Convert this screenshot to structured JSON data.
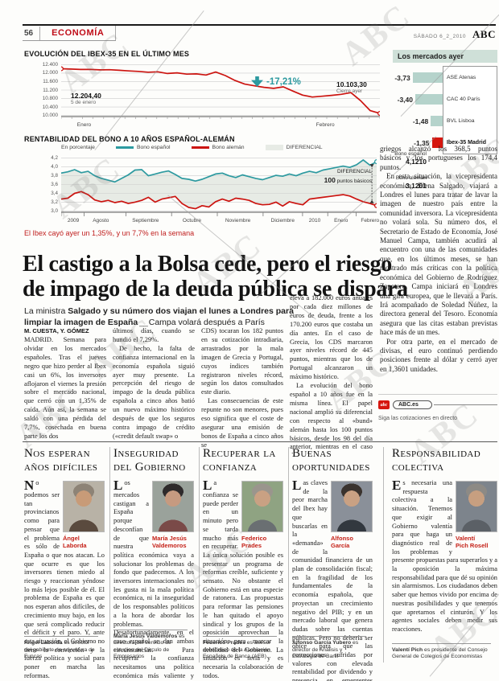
{
  "page_header": {
    "page_number": "56",
    "section": "ECONOMÍA",
    "date": "SÁBADO 6_2_2010",
    "brand": "ABC"
  },
  "watermark_text": "ABC",
  "chart_data": [
    {
      "type": "line",
      "title": "EVOLUCIÓN DEL IBEX-35 EN EL ÚLTIMO MES",
      "ylim": [
        9950,
        12450
      ],
      "yticks": [
        {
          "v": 12400,
          "label": "12.400"
        },
        {
          "v": 12000,
          "label": "12.000"
        },
        {
          "v": 11600,
          "label": "11.600"
        },
        {
          "v": 11200,
          "label": "11.200"
        },
        {
          "v": 10800,
          "label": "10.800"
        },
        {
          "v": 10400,
          "label": "10.400"
        },
        {
          "v": 10000,
          "label": "10.000"
        }
      ],
      "xticks": [
        {
          "pos": 0.05,
          "label": "Enero"
        },
        {
          "pos": 0.8,
          "label": "Febrero"
        }
      ],
      "minor_xticks": 30,
      "series": [
        {
          "name": "Ibex-35",
          "color": "#cc1410",
          "start_marker": true,
          "values": [
            12204,
            12190,
            12170,
            12175,
            12150,
            12160,
            12130,
            12100,
            12080,
            12040,
            12060,
            11980,
            12010,
            11950,
            11960,
            11910,
            12050,
            11880,
            11650,
            11480,
            11400,
            11330,
            11280,
            11350,
            11150,
            10960,
            10870,
            10910,
            10950,
            11000,
            11080,
            10700,
            10230,
            10103
          ]
        }
      ],
      "annotations": {
        "start_value": "12.204,40",
        "start_caption": "5 de enero",
        "change": "-17,21%",
        "end_value": "10.103,30",
        "end_caption": "Cierre ayer"
      }
    },
    {
      "type": "line",
      "title": "RENTABILIDAD DEL BONO A 10 AÑOS ESPAÑOL-ALEMÁN",
      "legend_unit": "En porcentaje",
      "legend": [
        {
          "label": "Bono español",
          "color": "#2d9aa0"
        },
        {
          "label": "Bono alemán",
          "color": "#cc1410"
        },
        {
          "label": "DIFERENCIAL",
          "color": "#e7ebe5"
        }
      ],
      "ylim": [
        2.97,
        4.25
      ],
      "yticks": [
        {
          "v": 4.2,
          "label": "4,2"
        },
        {
          "v": 4.0,
          "label": "4,0"
        },
        {
          "v": 3.8,
          "label": "3,8"
        },
        {
          "v": 3.6,
          "label": "3,6"
        },
        {
          "v": 3.4,
          "label": "3,4"
        },
        {
          "v": 3.2,
          "label": "3,2"
        },
        {
          "v": 3.0,
          "label": "3,0"
        }
      ],
      "xticks": [
        {
          "pos": 0.02,
          "label": "2009"
        },
        {
          "pos": 0.1,
          "label": "Agosto"
        },
        {
          "pos": 0.225,
          "label": "Septiembre"
        },
        {
          "pos": 0.385,
          "label": "Octubre"
        },
        {
          "pos": 0.52,
          "label": "Noviembre"
        },
        {
          "pos": 0.665,
          "label": "Diciembre"
        },
        {
          "pos": 0.785,
          "label": "2010"
        },
        {
          "pos": 0.865,
          "label": "Enero"
        },
        {
          "pos": 0.95,
          "label": "Febrero"
        }
      ],
      "xdividers": [
        0,
        0.073,
        0.205,
        0.35,
        0.495,
        0.64,
        0.765,
        0.845,
        0.935
      ],
      "band_color": "#e7ebe5",
      "spread_arrows": true,
      "series": [
        {
          "name": "Bono español",
          "color": "#2d9aa0",
          "values": [
            3.86,
            3.89,
            3.94,
            3.87,
            3.9,
            3.8,
            3.74,
            3.7,
            3.66,
            3.74,
            3.82,
            3.93,
            3.94,
            3.8,
            3.84,
            3.88,
            3.91,
            3.83,
            3.74,
            3.72,
            3.68,
            3.72,
            3.78,
            3.84,
            3.86,
            3.8,
            3.76,
            3.82,
            3.78,
            3.74,
            3.71,
            3.76,
            3.81,
            3.79,
            3.84,
            3.8,
            3.86,
            3.9,
            3.87,
            3.93,
            3.96,
            3.99,
            4.02,
            3.99,
            4.05,
            4.16,
            4.04,
            4.12
          ]
        },
        {
          "name": "Bono alemán",
          "color": "#cc1410",
          "values": [
            3.27,
            3.29,
            3.4,
            3.44,
            3.37,
            3.25,
            3.21,
            3.24,
            3.19,
            3.22,
            3.17,
            3.2,
            3.24,
            3.31,
            3.2,
            3.27,
            3.3,
            3.33,
            3.17,
            3.08,
            3.05,
            3.12,
            3.09,
            3.21,
            3.27,
            3.22,
            3.29,
            3.27,
            3.24,
            3.17,
            3.14,
            3.15,
            3.2,
            3.11,
            3.21,
            3.17,
            3.14,
            3.27,
            3.29,
            3.31,
            3.33,
            3.35,
            3.37,
            3.34,
            3.27,
            3.21,
            3.17,
            3.12
          ]
        }
      ],
      "annotations": {
        "esp_label": "Bono español",
        "esp_value": "4,1210",
        "dif_label": "DIFERENCIAL",
        "dif_value": "100",
        "dif_unit": "puntos básicos",
        "ale_label": "Bono alemán",
        "ale_value": "3,1201"
      }
    },
    {
      "type": "bar",
      "title": "Los mercados ayer",
      "rows": [
        {
          "value": "-3,73",
          "value_num": -3.73,
          "label": "ASE Atenas",
          "color": "#b5d3cb",
          "bold": false
        },
        {
          "value": "-3,40",
          "value_num": -3.4,
          "label": "CAC 40 París",
          "color": "#b5d3cb",
          "bold": false
        },
        {
          "value": "-1,48",
          "value_num": -1.48,
          "label": "BVL Lisboa",
          "color": "#b5d3cb",
          "bold": false
        },
        {
          "value": "-1,35",
          "value_num": -1.35,
          "label": "Ibex-35 Madrid",
          "color": "#d6170f",
          "bold": true
        }
      ]
    }
  ],
  "article": {
    "kicker": "El Ibex cayó ayer un 1,35%, y un 7,7% en la semana",
    "headline_line1": "El castigo a la Bolsa cede, pero el riesgo",
    "headline_line2": "de impago de la deuda pública se dispara",
    "subhead_prefix": "La ministra ",
    "subhead_bold": "Salgado y su número dos viajan el lunes a Londres para limpiar la imagen de España",
    "subhead_sep": " __ ",
    "subhead_rest": "Campa volará después a París",
    "byline": "M. CUESTA, Y. GÓMEZ",
    "col1": [
      "MADRID. Semana para olvidar en los mercados españoles. Tras el jueves negro que hizo perder al Ibex casi un 6%, los inversores aflojaron el viernes la presión sobre el mercado nacional, que cerró con un 1,35% de caída. Aún así, la semana se saldó con una pérdida del 7,7%, cosechada en buena parte los dos"
    ],
    "col2": [
      "últimos días, cuando se hundió el 7,29%.",
      "De hecho, la falta de confianza internacional en la economía española siguió ayer muy presente. La percepción del riesgo de impago de la deuda pública española a cinco años batió un nuevo máximo histórico después de que los seguros contra impago de crédito («credit default swap» o"
    ],
    "col3": [
      "CDS) tocaran los 182 puntos en su cotización intradiaria, arrastrados por la mala imagen de Grecia y Portugal, cuyos índices también registraron niveles récord, según los datos consultados este diario.",
      "Las consecuencias de este repunte no son menores, pues eso significa que el coste de asegurar una emisión de bonos de España a cinco años se"
    ],
    "col4": [
      "eleva a 182.000 euros anuales por cada diez millones de euros de deuda, frente a los 170.200 euros que costaba un día antes. En el caso de Grecia, los CDS marcaron ayer niveles récord de 445 puntos, mientras que los de Portugal alcanzaron un máximo histórico.",
      "La evolución del bono español a 10 años fue en la misma línea. El papel nacional amplió su diferencial con respecto al «bund» alemán hasta los 100 puntos básicos, desde los 98 del día anterior, mientras en el caso de los bonos"
    ],
    "right_col": [
      "griegos alcanzó los 368,5 puntos básicos y los portugueses los 174,4 puntos.",
      "En esta situación, la vicepresidenta económica, Elena Salgado, viajará a Londres el lunes para tratar de lavar la imagen de nuestro país entre la comunidad inversora. La vicepresidenta no volará sola. Su número dos, el Secretario de Estado de Economía, José Manuel Campa, también acudirá al encuentro con una de las comunidades que, en los últimos meses, se han mostrado más críticas con la política económica del Gobierno de Rodríguez Zapatero. Campa iniciará en Londres una gira europea, que le llevará a París. Irá acompañado de Soledad Núñez, la directora general del Tesoro. Economía asegura que las citas estaban previstas hace más de un mes.",
      "Por otra parte, en el mercado de divisas, el euro continuó perdiendo posiciones frente al dólar y cerró ayer en 1,3601 unidades."
    ],
    "abc_es": {
      "label": "ABC.es",
      "logo": "abc",
      "note": "Siga las cotizaciones en directo"
    }
  },
  "opinions": [
    {
      "title1": "Nos esperan",
      "title2": "años difíciles",
      "dropcap": "N",
      "text": "o podemos ser tan provincianos como para pensar que el problema es sólo de España o que nos atacan. Lo que ocurre es que los inversores tienen miedo al riesgo y reaccionan yéndose lo más lejos posible de él. El problema de España es que nos esperan años difíciles, de crecimiento muy bajo, en los que será complicado reducir el déficit y el paro. Y, ante esta situación, el Gobierno no tiene la convicción y la fuerza política y social para poner en marcha las reformas.",
      "name1": "Ángel",
      "name2": "Laborda",
      "footer_name": "Ángel Laborda",
      "footer_text": "es director del gabinete de coyuntura de Funcas",
      "photo": {
        "bg": "#b8b2a6",
        "suit": "#5a4a3e",
        "skin": "#c89b78",
        "hair": "#8d8376"
      }
    },
    {
      "title1": "Inseguridad",
      "title2": "del Gobierno",
      "dropcap": "L",
      "text": "os mercados castigan a España porque desconfían de que nuestra política económica vaya a solucionar los problemas de fondo que padecemos. A los inversores internacionales no les gusta ni la mala política económica, ni la inseguridad de los responsables políticos a la hora de abordar los problemas. Desafortunadamente, en el caso español se dan ambas circunstancias. Para recuperar la confianza necesitamos una política económica más valiente y decidida.",
      "name1": "María Jesús",
      "name2": "Valdemoros",
      "footer_name": "María Jesús Valdemoros",
      "footer_text": "es directora del servicio de estudios del Círculo de Empresarios",
      "photo": {
        "bg": "#9aa29b",
        "suit": "#7a4a48",
        "skin": "#c69a80",
        "hair": "#2e2a2b"
      }
    },
    {
      "title1": "Recuperar la",
      "title2": "confianza",
      "dropcap": "L",
      "text": "a confianza se puede perder en un minuto pero se tarda mucho más en recuperar. La única solución posible es presentar un programa de reformas creíble, suficiente y sensato. No obstante el Gobierno está en una especie de ratonera. Las propuestas para reformar las pensiones le han quitado el apoyo sindical y los grupos de la oposición aprovechan la situación para marcar la debilidad del Gobierno. La situación es seria y es necesaria la colaboración de todos.",
      "name1": "Federico",
      "name2": "Prades",
      "footer_name": "Federico Prades",
      "footer_text": "es asesor económico de la Asociación Española de Banca (AEB)",
      "photo": {
        "bg": "#8fa382",
        "suit": "#6a6f72",
        "skin": "#c9a183",
        "hair": "#9a958d"
      }
    },
    {
      "title1": "Buenas",
      "title2": "oportunidades",
      "dropcap": "L",
      "text": "as claves de la peor marcha del Ibex hay que buscarlas en la «demanda» de la comunidad financiera de un plan de consolidación fiscal; en la fragilidad de los fundamentales de la economía española, que proyectan un crecimiento negativo del PIB; y en un mercado laboral que genera dudas sobre las cuentas públicas. Pero no debería ser óbice para que las correcciones sufridas por valores con elevada rentabilidad por dividendo y presencia en emergentes puedan ser buenas oportunidades de compra.",
      "name1": "Alfonso",
      "name2": "García",
      "footer_name": "Alfonso García Yubero",
      "footer_text": "es director de Análisis y Estrategia de Banif",
      "photo": {
        "bg": "#8a9099",
        "suit": "#32383f",
        "skin": "#c9a183",
        "hair": "#3a332e"
      }
    },
    {
      "title1": "Responsabilidad",
      "title2": "colectiva",
      "dropcap": "E",
      "text": "s necesaria una respuesta colectiva a la situación. Tenemos que exigir al Gobierno valentía para que haga un diagnóstico real de los problemas y presente propuestas para superarlos y a la oposición la máxima responsabilidad para que dé su opinión sin alarmismos. Los ciudadanos deben saber que hemos vivido por encima de nuestras posibilidades y que tenemos que apretarnos el cinturón. Y los agentes sociales deben medir sus reacciones.",
      "name1": "Valentí",
      "name2": "Pich Rosell",
      "footer_name": "Valentí Pich",
      "footer_text": "es presidente del Consejo General de Colegios de Economistas",
      "photo": {
        "bg": "#7d848c",
        "suit": "#5b6066",
        "skin": "#c79f80",
        "hair": "#8d8a85"
      }
    }
  ]
}
